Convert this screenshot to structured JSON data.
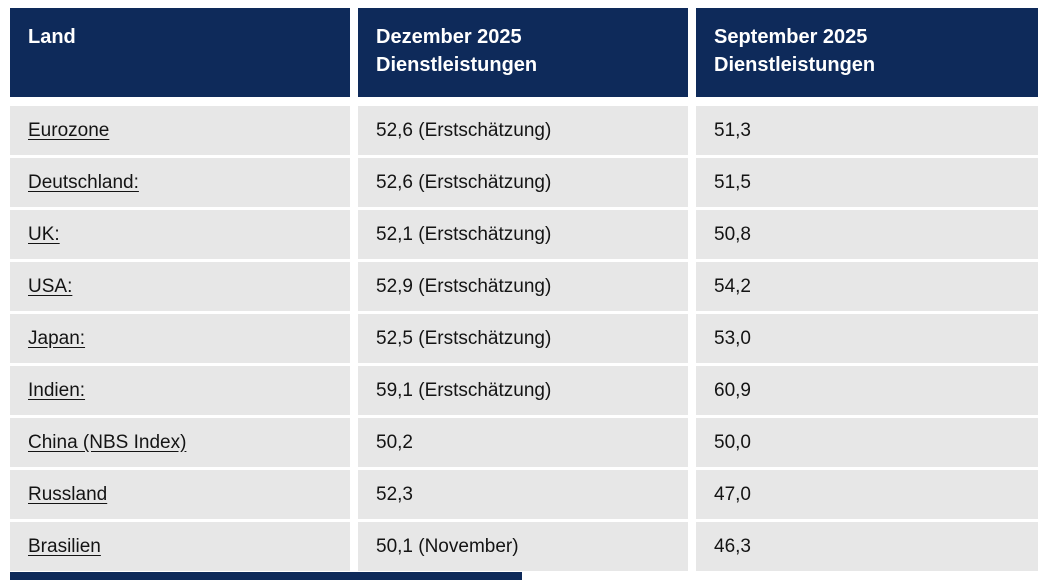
{
  "colors": {
    "header_bg": "#0e2a5a",
    "header_text": "#ffffff",
    "row_bg": "#e7e7e7",
    "body_text": "#141414",
    "page_bg": "#ffffff"
  },
  "table": {
    "columns": [
      {
        "label": "Land"
      },
      {
        "label": "Dezember 2025 Dienstleistungen"
      },
      {
        "label": "September 2025 Dienstleistungen"
      }
    ],
    "rows": [
      {
        "land": "Eurozone",
        "dezember": "52,6 (Erstschätzung)",
        "september": "51,3"
      },
      {
        "land": "Deutschland:",
        "dezember": "52,6 (Erstschätzung)",
        "september": "51,5"
      },
      {
        "land": "UK:",
        "dezember": "52,1 (Erstschätzung)",
        "september": "50,8"
      },
      {
        "land": "USA:",
        "dezember": "52,9 (Erstschätzung)",
        "september": "54,2"
      },
      {
        "land": "Japan:",
        "dezember": "52,5 (Erstschätzung)",
        "september": "53,0"
      },
      {
        "land": "Indien:",
        "dezember": "59,1 (Erstschätzung)",
        "september": "60,9"
      },
      {
        "land": "China (NBS Index)",
        "dezember": "50,2",
        "september": "50,0"
      },
      {
        "land": "Russland",
        "dezember": "52,3",
        "september": "47,0"
      },
      {
        "land": "Brasilien",
        "dezember": "50,1 (November)",
        "september": "46,3"
      }
    ]
  }
}
